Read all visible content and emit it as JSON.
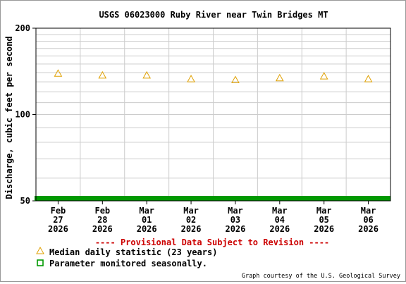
{
  "chart_data": {
    "type": "scatter",
    "title": "USGS 06023000 Ruby River near Twin Bridges MT",
    "ylabel": "Discharge, cubic feet per second",
    "y_scale": "log",
    "ylim": [
      50,
      200
    ],
    "y_ticks": [
      50,
      100,
      200
    ],
    "grid": true,
    "x_ticks": [
      {
        "month": "Feb",
        "day": "27",
        "year": "2026"
      },
      {
        "month": "Feb",
        "day": "28",
        "year": "2026"
      },
      {
        "month": "Mar",
        "day": "01",
        "year": "2026"
      },
      {
        "month": "Mar",
        "day": "02",
        "year": "2026"
      },
      {
        "month": "Mar",
        "day": "03",
        "year": "2026"
      },
      {
        "month": "Mar",
        "day": "04",
        "year": "2026"
      },
      {
        "month": "Mar",
        "day": "05",
        "year": "2026"
      },
      {
        "month": "Mar",
        "day": "06",
        "year": "2026"
      }
    ],
    "series": [
      {
        "name": "Median daily statistic (23 years)",
        "marker": "triangle",
        "color": "#e0a000",
        "x": [
          "2026-02-27",
          "2026-02-28",
          "2026-03-01",
          "2026-03-02",
          "2026-03-03",
          "2026-03-04",
          "2026-03-05",
          "2026-03-06"
        ],
        "values": [
          139,
          137,
          137,
          133,
          132,
          134,
          136,
          133
        ]
      }
    ],
    "seasonal_bar": {
      "label": "Parameter monitored seasonally.",
      "color": "#009900"
    },
    "provisional_note": "---- Provisional Data Subject to Revision ----",
    "legend_placement": "bottom-left",
    "credit": "Graph courtesy of the U.S. Geological Survey"
  },
  "colors": {
    "provisional": "#cc0000",
    "median_marker": "#e0a000",
    "seasonal": "#009900",
    "grid": "#cccccc",
    "axis": "#000000"
  }
}
